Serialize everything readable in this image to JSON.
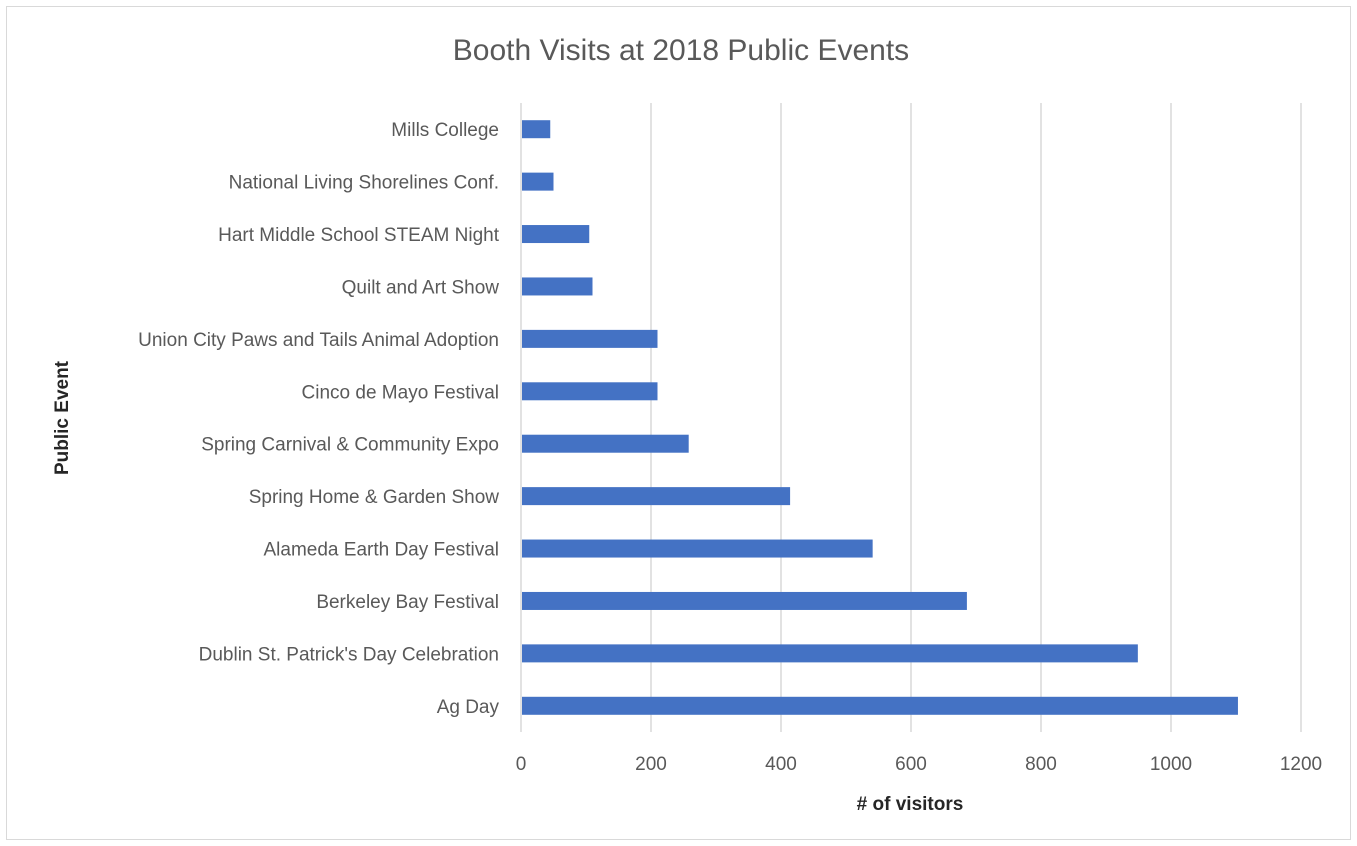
{
  "chart_data": {
    "type": "bar",
    "orientation": "horizontal",
    "title": "Booth Visits at 2018 Public Events",
    "xlabel": "# of visitors",
    "ylabel": "Public Event",
    "xlim": [
      0,
      1200
    ],
    "xticks": [
      0,
      200,
      400,
      600,
      800,
      1000,
      1200
    ],
    "grid": "vertical",
    "legend": "none",
    "bar_color": "#4472c4",
    "categories": [
      "Mills College",
      "National Living Shorelines Conf.",
      "Hart Middle School STEAM Night",
      "Quilt and Art Show",
      "Union City Paws and Tails Animal Adoption",
      "Cinco de Mayo Festival",
      "Spring Carnival & Community Expo",
      "Spring Home & Garden Show",
      "Alameda Earth Day Festival",
      "Berkeley Bay Festival",
      "Dublin St. Patrick's Day Celebration",
      "Ag Day"
    ],
    "values": [
      45,
      50,
      105,
      110,
      210,
      210,
      258,
      414,
      541,
      686,
      949,
      1103
    ]
  }
}
